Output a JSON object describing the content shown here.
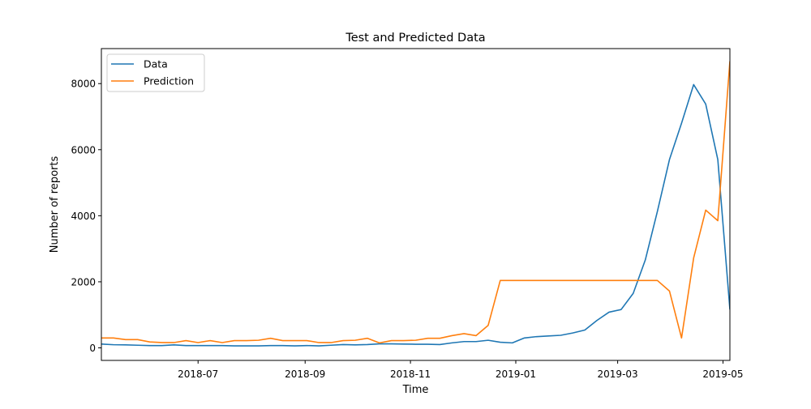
{
  "chart_data": {
    "type": "line",
    "title": "Test and Predicted Data",
    "xlabel": "Time",
    "ylabel": "Number of reports",
    "xlim": [
      "2018-05-06",
      "2019-05-05"
    ],
    "ylim": [
      -380,
      9060
    ],
    "x_ticks": [
      {
        "date": "2018-07-01",
        "label": "2018-07"
      },
      {
        "date": "2018-09-01",
        "label": "2018-09"
      },
      {
        "date": "2018-11-01",
        "label": "2018-11"
      },
      {
        "date": "2019-01-01",
        "label": "2019-01"
      },
      {
        "date": "2019-03-01",
        "label": "2019-03"
      },
      {
        "date": "2019-05-01",
        "label": "2019-05"
      }
    ],
    "y_ticks": [
      0,
      2000,
      4000,
      6000,
      8000
    ],
    "grid": false,
    "legend_position": "top-left",
    "series": [
      {
        "name": "Data",
        "color": "#1f77b4",
        "points": [
          [
            "2018-05-06",
            115
          ],
          [
            "2018-05-13",
            95
          ],
          [
            "2018-05-20",
            90
          ],
          [
            "2018-05-27",
            80
          ],
          [
            "2018-06-03",
            70
          ],
          [
            "2018-06-10",
            70
          ],
          [
            "2018-06-17",
            90
          ],
          [
            "2018-06-24",
            70
          ],
          [
            "2018-07-01",
            70
          ],
          [
            "2018-07-08",
            70
          ],
          [
            "2018-07-15",
            70
          ],
          [
            "2018-07-22",
            60
          ],
          [
            "2018-07-29",
            60
          ],
          [
            "2018-08-05",
            60
          ],
          [
            "2018-08-12",
            70
          ],
          [
            "2018-08-19",
            70
          ],
          [
            "2018-08-26",
            60
          ],
          [
            "2018-09-02",
            70
          ],
          [
            "2018-09-09",
            60
          ],
          [
            "2018-09-16",
            80
          ],
          [
            "2018-09-23",
            100
          ],
          [
            "2018-09-30",
            90
          ],
          [
            "2018-10-07",
            100
          ],
          [
            "2018-10-14",
            120
          ],
          [
            "2018-10-21",
            120
          ],
          [
            "2018-10-28",
            115
          ],
          [
            "2018-11-04",
            110
          ],
          [
            "2018-11-11",
            110
          ],
          [
            "2018-11-18",
            100
          ],
          [
            "2018-11-25",
            150
          ],
          [
            "2018-12-02",
            190
          ],
          [
            "2018-12-09",
            190
          ],
          [
            "2018-12-16",
            230
          ],
          [
            "2018-12-23",
            170
          ],
          [
            "2018-12-30",
            150
          ],
          [
            "2019-01-06",
            300
          ],
          [
            "2019-01-13",
            340
          ],
          [
            "2019-01-20",
            360
          ],
          [
            "2019-01-27",
            380
          ],
          [
            "2019-02-03",
            450
          ],
          [
            "2019-02-10",
            540
          ],
          [
            "2019-02-17",
            830
          ],
          [
            "2019-02-24",
            1080
          ],
          [
            "2019-03-03",
            1160
          ],
          [
            "2019-03-10",
            1650
          ],
          [
            "2019-03-17",
            2660
          ],
          [
            "2019-03-24",
            4130
          ],
          [
            "2019-03-31",
            5700
          ],
          [
            "2019-04-07",
            6800
          ],
          [
            "2019-04-14",
            7970
          ],
          [
            "2019-04-21",
            7380
          ],
          [
            "2019-04-28",
            5700
          ],
          [
            "2019-05-05",
            1160
          ]
        ]
      },
      {
        "name": "Prediction",
        "color": "#ff7f0e",
        "points": [
          [
            "2018-05-06",
            300
          ],
          [
            "2018-05-13",
            300
          ],
          [
            "2018-05-20",
            250
          ],
          [
            "2018-05-27",
            250
          ],
          [
            "2018-06-03",
            180
          ],
          [
            "2018-06-10",
            160
          ],
          [
            "2018-06-17",
            160
          ],
          [
            "2018-06-24",
            220
          ],
          [
            "2018-07-01",
            160
          ],
          [
            "2018-07-08",
            220
          ],
          [
            "2018-07-15",
            160
          ],
          [
            "2018-07-22",
            220
          ],
          [
            "2018-07-29",
            220
          ],
          [
            "2018-08-05",
            230
          ],
          [
            "2018-08-12",
            290
          ],
          [
            "2018-08-19",
            220
          ],
          [
            "2018-08-26",
            220
          ],
          [
            "2018-09-02",
            220
          ],
          [
            "2018-09-09",
            160
          ],
          [
            "2018-09-16",
            160
          ],
          [
            "2018-09-23",
            220
          ],
          [
            "2018-09-30",
            230
          ],
          [
            "2018-10-07",
            290
          ],
          [
            "2018-10-14",
            150
          ],
          [
            "2018-10-21",
            220
          ],
          [
            "2018-10-28",
            220
          ],
          [
            "2018-11-04",
            230
          ],
          [
            "2018-11-11",
            290
          ],
          [
            "2018-11-18",
            290
          ],
          [
            "2018-11-25",
            370
          ],
          [
            "2018-12-02",
            430
          ],
          [
            "2018-12-09",
            370
          ],
          [
            "2018-12-16",
            680
          ],
          [
            "2018-12-23",
            2040
          ],
          [
            "2018-12-30",
            2040
          ],
          [
            "2019-01-06",
            2040
          ],
          [
            "2019-01-13",
            2040
          ],
          [
            "2019-01-20",
            2040
          ],
          [
            "2019-01-27",
            2040
          ],
          [
            "2019-02-03",
            2040
          ],
          [
            "2019-02-10",
            2040
          ],
          [
            "2019-02-17",
            2040
          ],
          [
            "2019-02-24",
            2040
          ],
          [
            "2019-03-03",
            2040
          ],
          [
            "2019-03-10",
            2040
          ],
          [
            "2019-03-17",
            2040
          ],
          [
            "2019-03-24",
            2040
          ],
          [
            "2019-03-31",
            1720
          ],
          [
            "2019-04-07",
            300
          ],
          [
            "2019-04-14",
            2720
          ],
          [
            "2019-04-21",
            4170
          ],
          [
            "2019-04-28",
            3850
          ],
          [
            "2019-05-05",
            8680
          ]
        ]
      }
    ]
  }
}
